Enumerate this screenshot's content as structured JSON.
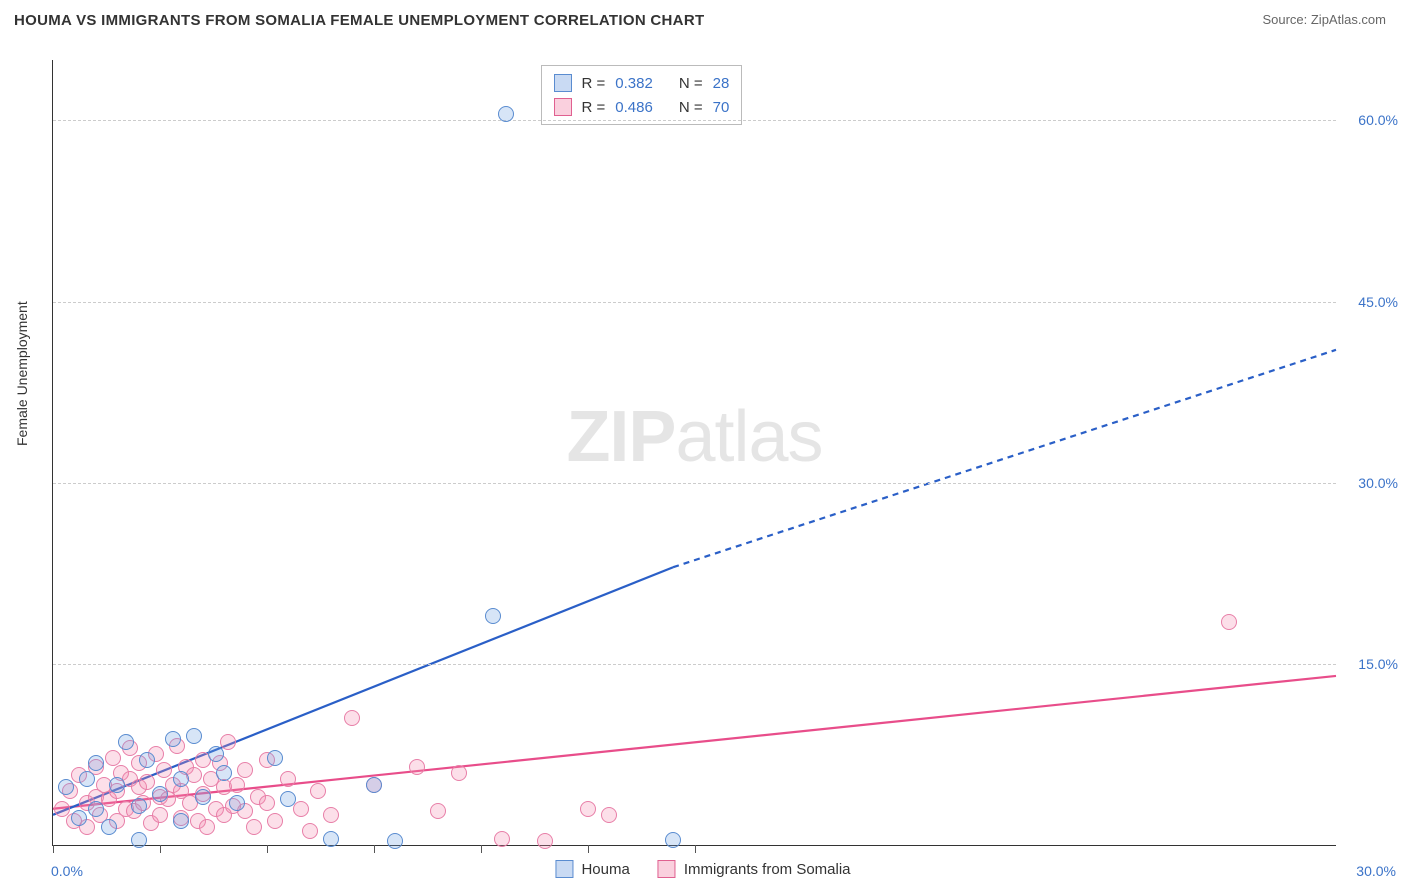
{
  "title": "HOUMA VS IMMIGRANTS FROM SOMALIA FEMALE UNEMPLOYMENT CORRELATION CHART",
  "source_prefix": "Source: ",
  "source_link": "ZipAtlas.com",
  "y_axis_title": "Female Unemployment",
  "watermark_zip": "ZIP",
  "watermark_atlas": "atlas",
  "chart": {
    "type": "scatter",
    "background_color": "#ffffff",
    "grid_color": "#cccccc",
    "axis_color": "#333333",
    "label_color": "#3b73c8",
    "xlim": [
      0,
      30
    ],
    "ylim": [
      0,
      65
    ],
    "y_gridlines": [
      15,
      30,
      45,
      60
    ],
    "y_labels": [
      "15.0%",
      "30.0%",
      "45.0%",
      "60.0%"
    ],
    "x_ticks": [
      0,
      2.5,
      5,
      7.5,
      10,
      12.5,
      15
    ],
    "x_left_label": "0.0%",
    "x_right_label": "30.0%",
    "label_fontsize": 14,
    "title_fontsize": 15
  },
  "legend_top": {
    "series": [
      {
        "color": "blue",
        "r_label": "R =",
        "r_value": "0.382",
        "n_label": "N =",
        "n_value": "28"
      },
      {
        "color": "pink",
        "r_label": "R =",
        "r_value": "0.486",
        "n_label": "N =",
        "n_value": "70"
      }
    ]
  },
  "legend_bottom": {
    "items": [
      {
        "color": "blue",
        "label": "Houma"
      },
      {
        "color": "pink",
        "label": "Immigrants from Somalia"
      }
    ]
  },
  "series_blue": {
    "color_fill": "rgba(110,160,225,0.28)",
    "color_stroke": "#5a8cd0",
    "marker_size": 16,
    "trend_color": "#2a5fc7",
    "trend_width": 2.2,
    "trend": {
      "x1": 0,
      "y1": 2.5,
      "x2_solid": 14.5,
      "y2_solid": 23,
      "x2_dash": 30,
      "y2_dash": 41
    },
    "points": [
      [
        0.3,
        4.8
      ],
      [
        0.6,
        2.2
      ],
      [
        0.8,
        5.5
      ],
      [
        1.0,
        3.0
      ],
      [
        1.0,
        6.8
      ],
      [
        1.3,
        1.5
      ],
      [
        1.5,
        5.0
      ],
      [
        1.7,
        8.5
      ],
      [
        2.0,
        3.2
      ],
      [
        2.0,
        0.4
      ],
      [
        2.2,
        7.0
      ],
      [
        2.5,
        4.2
      ],
      [
        2.8,
        8.8
      ],
      [
        3.0,
        5.5
      ],
      [
        3.0,
        2.0
      ],
      [
        3.3,
        9.0
      ],
      [
        3.5,
        4.0
      ],
      [
        3.8,
        7.5
      ],
      [
        4.0,
        6.0
      ],
      [
        4.3,
        3.5
      ],
      [
        5.2,
        7.2
      ],
      [
        5.5,
        3.8
      ],
      [
        6.5,
        0.5
      ],
      [
        7.5,
        5.0
      ],
      [
        8.0,
        0.3
      ],
      [
        10.3,
        19.0
      ],
      [
        10.6,
        60.5
      ],
      [
        14.5,
        0.4
      ]
    ]
  },
  "series_pink": {
    "color_fill": "rgba(245,140,175,0.28)",
    "color_stroke": "#e87fa8",
    "marker_size": 16,
    "trend_color": "#e84d8a",
    "trend_width": 2.2,
    "trend": {
      "x1": 0,
      "y1": 3.0,
      "x2": 30,
      "y2": 14
    },
    "points": [
      [
        0.2,
        3.0
      ],
      [
        0.4,
        4.5
      ],
      [
        0.5,
        2.0
      ],
      [
        0.6,
        5.8
      ],
      [
        0.8,
        3.5
      ],
      [
        0.8,
        1.5
      ],
      [
        1.0,
        4.0
      ],
      [
        1.0,
        6.5
      ],
      [
        1.1,
        2.5
      ],
      [
        1.2,
        5.0
      ],
      [
        1.3,
        3.8
      ],
      [
        1.4,
        7.2
      ],
      [
        1.5,
        2.0
      ],
      [
        1.5,
        4.5
      ],
      [
        1.6,
        6.0
      ],
      [
        1.7,
        3.0
      ],
      [
        1.8,
        5.5
      ],
      [
        1.8,
        8.0
      ],
      [
        1.9,
        2.8
      ],
      [
        2.0,
        4.8
      ],
      [
        2.0,
        6.8
      ],
      [
        2.1,
        3.5
      ],
      [
        2.2,
        5.2
      ],
      [
        2.3,
        1.8
      ],
      [
        2.4,
        7.5
      ],
      [
        2.5,
        4.0
      ],
      [
        2.5,
        2.5
      ],
      [
        2.6,
        6.2
      ],
      [
        2.7,
        3.8
      ],
      [
        2.8,
        5.0
      ],
      [
        2.9,
        8.2
      ],
      [
        3.0,
        2.2
      ],
      [
        3.0,
        4.5
      ],
      [
        3.1,
        6.5
      ],
      [
        3.2,
        3.5
      ],
      [
        3.3,
        5.8
      ],
      [
        3.4,
        2.0
      ],
      [
        3.5,
        7.0
      ],
      [
        3.5,
        4.2
      ],
      [
        3.6,
        1.5
      ],
      [
        3.7,
        5.5
      ],
      [
        3.8,
        3.0
      ],
      [
        3.9,
        6.8
      ],
      [
        4.0,
        2.5
      ],
      [
        4.0,
        4.8
      ],
      [
        4.1,
        8.5
      ],
      [
        4.2,
        3.2
      ],
      [
        4.3,
        5.0
      ],
      [
        4.5,
        2.8
      ],
      [
        4.5,
        6.2
      ],
      [
        4.7,
        1.5
      ],
      [
        4.8,
        4.0
      ],
      [
        5.0,
        3.5
      ],
      [
        5.0,
        7.0
      ],
      [
        5.2,
        2.0
      ],
      [
        5.5,
        5.5
      ],
      [
        5.8,
        3.0
      ],
      [
        6.0,
        1.2
      ],
      [
        6.2,
        4.5
      ],
      [
        6.5,
        2.5
      ],
      [
        7.0,
        10.5
      ],
      [
        7.5,
        5.0
      ],
      [
        8.5,
        6.5
      ],
      [
        9.0,
        2.8
      ],
      [
        9.5,
        6.0
      ],
      [
        10.5,
        0.5
      ],
      [
        11.5,
        0.3
      ],
      [
        12.5,
        3.0
      ],
      [
        13.0,
        2.5
      ],
      [
        27.5,
        18.5
      ]
    ]
  }
}
